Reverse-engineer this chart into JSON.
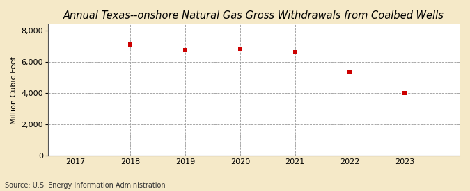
{
  "title": "Annual Texas--onshore Natural Gas Gross Withdrawals from Coalbed Wells",
  "ylabel": "Million Cubic Feet",
  "source": "Source: U.S. Energy Information Administration",
  "years": [
    2018,
    2019,
    2020,
    2021,
    2022,
    2023
  ],
  "values": [
    7117,
    6756,
    6802,
    6612,
    5320,
    4003
  ],
  "xlim": [
    2016.5,
    2024.0
  ],
  "ylim": [
    0,
    8400
  ],
  "yticks": [
    0,
    2000,
    4000,
    6000,
    8000
  ],
  "xticks": [
    2017,
    2018,
    2019,
    2020,
    2021,
    2022,
    2023
  ],
  "marker_color": "#cc0000",
  "marker": "s",
  "marker_size": 5,
  "figure_bg": "#f5e9c8",
  "plot_bg": "#ffffff",
  "grid_color": "#999999",
  "title_fontsize": 10.5,
  "label_fontsize": 8,
  "tick_fontsize": 8,
  "source_fontsize": 7
}
